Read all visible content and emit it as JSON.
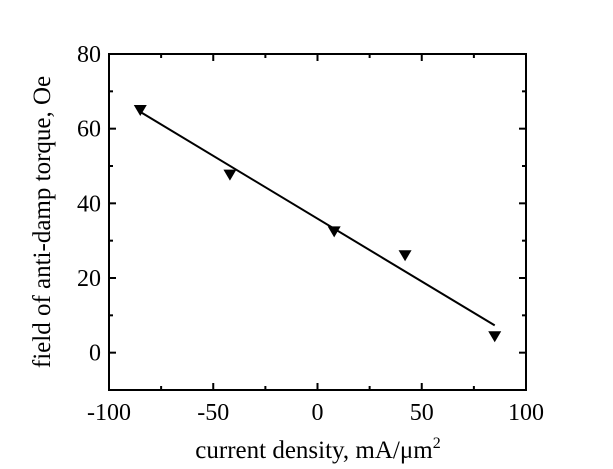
{
  "chart_data": {
    "type": "scatter",
    "title": "",
    "xlabel": "current density, mA/μm",
    "xlabel_superscript": "2",
    "ylabel": "field of anti-damp torque, Oe",
    "xlim": [
      -100,
      100
    ],
    "ylim": [
      -10,
      80
    ],
    "xticks": [
      -100,
      -50,
      0,
      50,
      100
    ],
    "yticks": [
      0,
      20,
      40,
      60,
      80
    ],
    "xtick_labels": [
      "-100",
      "-50",
      "0",
      "50",
      "100"
    ],
    "ytick_labels": [
      "0",
      "20",
      "40",
      "60",
      "80"
    ],
    "grid": false,
    "series": [
      {
        "name": "data",
        "marker": "down-triangle",
        "color": "#000000",
        "x": [
          -85,
          -42,
          8,
          42,
          85
        ],
        "y": [
          65,
          47.7,
          32.5,
          26.1,
          4.4
        ]
      },
      {
        "name": "linear fit",
        "kind": "line",
        "color": "#000000",
        "x": [
          -85,
          85
        ],
        "y": [
          64.5,
          7.3
        ]
      }
    ]
  }
}
